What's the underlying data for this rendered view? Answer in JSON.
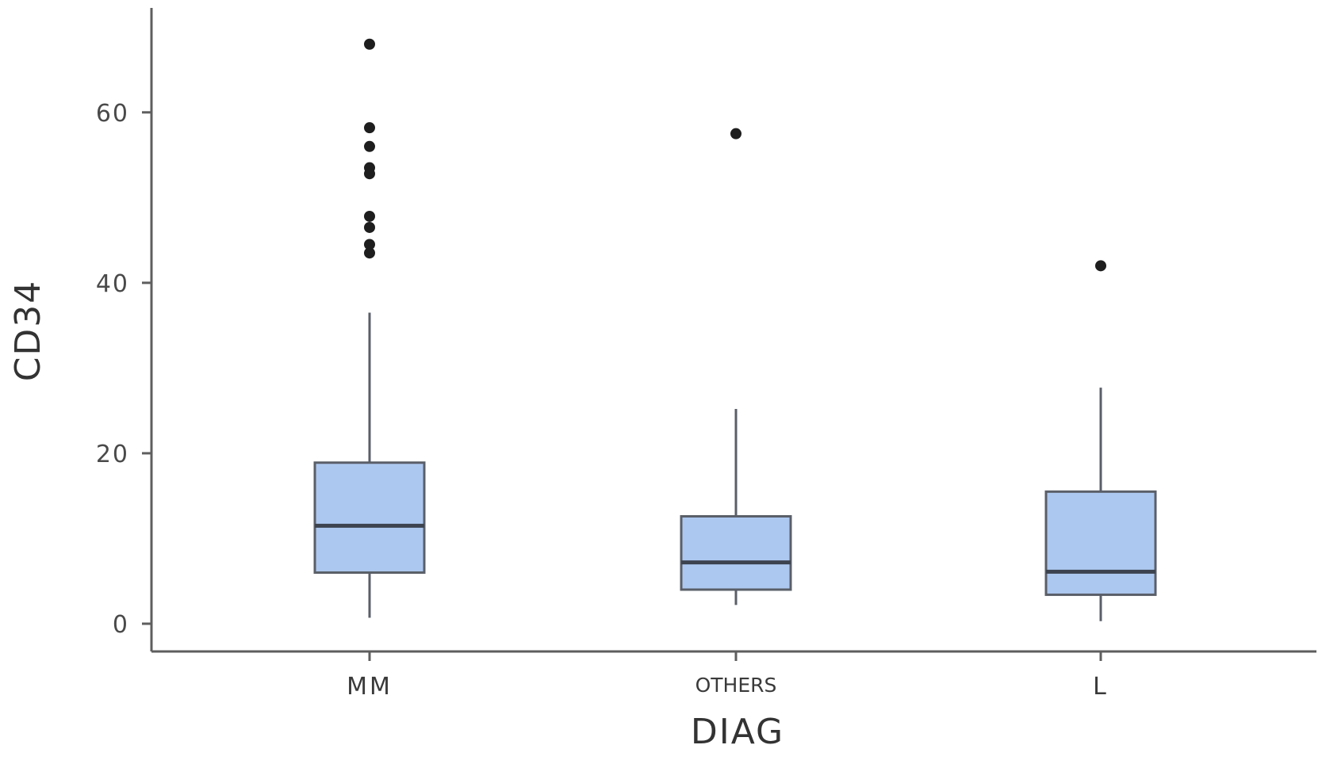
{
  "chart_data": {
    "type": "box",
    "xlabel": "DIAG",
    "ylabel": "CD34",
    "ylim": [
      -6,
      71
    ],
    "yticks": [
      0,
      20,
      40,
      60
    ],
    "grid": false,
    "colors": {
      "box_fill": "#adc8f0",
      "box_stroke": "#5a5f68",
      "median": "#3d4450",
      "outlier": "#1e1e1e",
      "axis": "#5e5e5e"
    },
    "categories": [
      "MM",
      "OTHERS",
      "L"
    ],
    "boxes": [
      {
        "category": "MM",
        "whisker_low": 0.7,
        "q1": 6.0,
        "median": 11.5,
        "q3": 18.9,
        "whisker_high": 36.5,
        "outliers": [
          68.0,
          58.2,
          56.0,
          53.5,
          52.8,
          47.8,
          46.5,
          44.5,
          43.5
        ]
      },
      {
        "category": "OTHERS",
        "whisker_low": 2.2,
        "q1": 4.0,
        "median": 7.2,
        "q3": 12.6,
        "whisker_high": 25.2,
        "outliers": [
          57.5
        ]
      },
      {
        "category": "L",
        "whisker_low": 0.3,
        "q1": 3.4,
        "median": 6.1,
        "q3": 15.5,
        "whisker_high": 27.7,
        "outliers": [
          42.0
        ]
      }
    ]
  }
}
